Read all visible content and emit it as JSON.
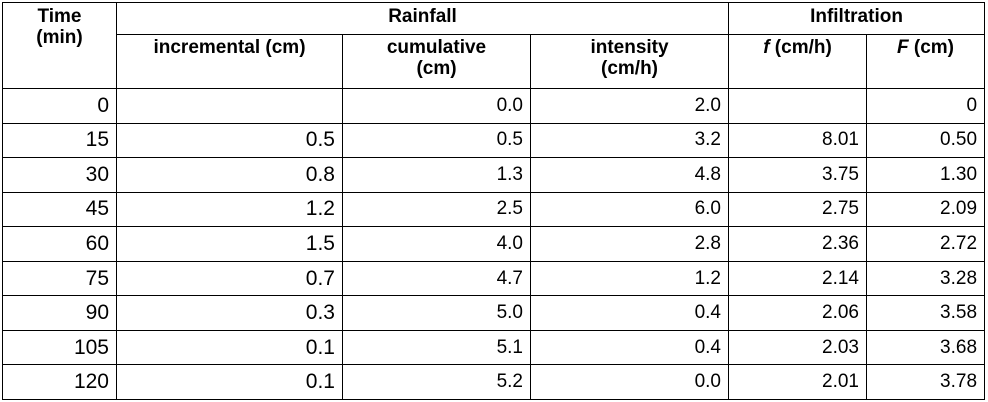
{
  "headers": {
    "time": "Time",
    "time_unit": "(min)",
    "rainfall": "Rainfall",
    "infiltration": "Infiltration",
    "incremental": "incremental (cm)",
    "cumulative": "cumulative",
    "cumulative_unit": "(cm)",
    "intensity": "intensity",
    "intensity_unit": "(cm/h)",
    "f_symbol": "f",
    "f_unit": " (cm/h)",
    "F_symbol": "F",
    "F_unit": " (cm)"
  },
  "rows": [
    {
      "time": "0",
      "incremental": "",
      "cumulative": "0.0",
      "intensity": "2.0",
      "f": "",
      "F": "0"
    },
    {
      "time": "15",
      "incremental": "0.5",
      "cumulative": "0.5",
      "intensity": "3.2",
      "f": "8.01",
      "F": "0.50"
    },
    {
      "time": "30",
      "incremental": "0.8",
      "cumulative": "1.3",
      "intensity": "4.8",
      "f": "3.75",
      "F": "1.30"
    },
    {
      "time": "45",
      "incremental": "1.2",
      "cumulative": "2.5",
      "intensity": "6.0",
      "f": "2.75",
      "F": "2.09"
    },
    {
      "time": "60",
      "incremental": "1.5",
      "cumulative": "4.0",
      "intensity": "2.8",
      "f": "2.36",
      "F": "2.72"
    },
    {
      "time": "75",
      "incremental": "0.7",
      "cumulative": "4.7",
      "intensity": "1.2",
      "f": "2.14",
      "F": "3.28"
    },
    {
      "time": "90",
      "incremental": "0.3",
      "cumulative": "5.0",
      "intensity": "0.4",
      "f": "2.06",
      "F": "3.58"
    },
    {
      "time": "105",
      "incremental": "0.1",
      "cumulative": "5.1",
      "intensity": "0.4",
      "f": "2.03",
      "F": "3.68"
    },
    {
      "time": "120",
      "incremental": "0.1",
      "cumulative": "5.2",
      "intensity": "0.0",
      "f": "2.01",
      "F": "3.78"
    }
  ]
}
